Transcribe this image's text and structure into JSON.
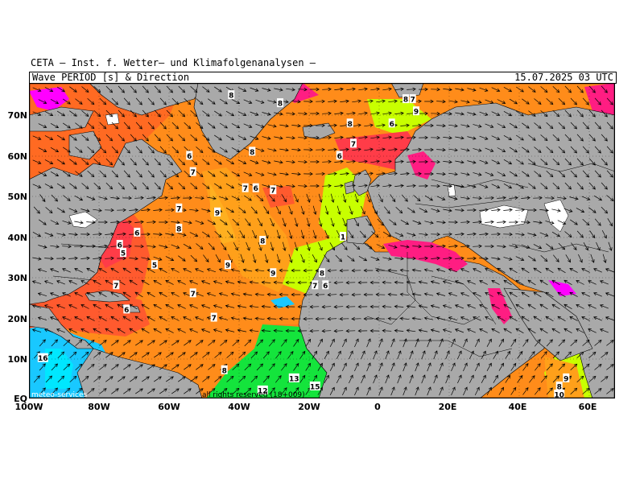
{
  "header": {
    "title": "CETA – Inst. f. Wetter– und Klimafolgenanalysen –",
    "subtitle": "Wave PERIOD [s] & Direction",
    "datetime": "15.07.2025 03 UTC"
  },
  "axes": {
    "lat_labels": [
      "70N",
      "60N",
      "50N",
      "40N",
      "30N",
      "20N",
      "10N",
      "EQ"
    ],
    "lon_labels": [
      "100W",
      "80W",
      "60W",
      "40W",
      "20W",
      "0",
      "20E",
      "40E",
      "60E"
    ]
  },
  "footer": {
    "left_text": "meteo-services",
    "right_text": "all rights reserved (18+009)"
  },
  "colors": {
    "land": "#a9a9a9",
    "ice": "#ffffff",
    "period_3s": "#ff00ff",
    "period_5s": "#ff2a6a",
    "period_6s": "#ff4d3a",
    "period_7s": "#ff7a20",
    "period_8s": "#ff9416",
    "period_9s": "#ffa01a",
    "period_10s": "#c8ff00",
    "period_12s": "#14e43c",
    "period_14s": "#00e7ff",
    "period_16s": "#19c8ff",
    "arrow": "#000000"
  },
  "period_labels": [
    {
      "v": "8",
      "lon": -28,
      "lat": 73
    },
    {
      "v": "8",
      "lon": -36,
      "lat": 61
    },
    {
      "v": "7",
      "lon": -38,
      "lat": 52
    },
    {
      "v": "6",
      "lon": -35,
      "lat": 52
    },
    {
      "v": "7",
      "lon": -30,
      "lat": 51.5
    },
    {
      "v": "6",
      "lon": -11,
      "lat": 60
    },
    {
      "v": "8",
      "lon": -42,
      "lat": 75
    },
    {
      "v": "8",
      "lon": -8,
      "lat": 68
    },
    {
      "v": "6",
      "lon": 4,
      "lat": 68
    },
    {
      "v": "8",
      "lon": 8,
      "lat": 74
    },
    {
      "v": "7",
      "lon": 10,
      "lat": 74
    },
    {
      "v": "9",
      "lon": 11,
      "lat": 71
    },
    {
      "v": "7",
      "lon": -7,
      "lat": 63
    },
    {
      "v": "6",
      "lon": -54,
      "lat": 60
    },
    {
      "v": "7",
      "lon": -53,
      "lat": 56
    },
    {
      "v": "7",
      "lon": -57,
      "lat": 47
    },
    {
      "v": "8",
      "lon": -57,
      "lat": 42
    },
    {
      "v": "9",
      "lon": -46,
      "lat": 46
    },
    {
      "v": "8",
      "lon": -33,
      "lat": 39
    },
    {
      "v": "9",
      "lon": -43,
      "lat": 33
    },
    {
      "v": "6",
      "lon": -69,
      "lat": 41
    },
    {
      "v": "6",
      "lon": -74,
      "lat": 38
    },
    {
      "v": "5",
      "lon": -73,
      "lat": 36
    },
    {
      "v": "5",
      "lon": -64,
      "lat": 33
    },
    {
      "v": "7",
      "lon": -75,
      "lat": 28
    },
    {
      "v": "6",
      "lon": -72,
      "lat": 22
    },
    {
      "v": "7",
      "lon": -53,
      "lat": 26
    },
    {
      "v": "7",
      "lon": -47,
      "lat": 20
    },
    {
      "v": "9",
      "lon": -30,
      "lat": 31
    },
    {
      "v": "7",
      "lon": -18,
      "lat": 28
    },
    {
      "v": "6",
      "lon": -15,
      "lat": 28
    },
    {
      "v": "8",
      "lon": -16,
      "lat": 31
    },
    {
      "v": "1",
      "lon": -10,
      "lat": 40
    },
    {
      "v": "8",
      "lon": -44,
      "lat": 7
    },
    {
      "v": "13",
      "lon": -24,
      "lat": 5
    },
    {
      "v": "12",
      "lon": -33,
      "lat": 2
    },
    {
      "v": "15",
      "lon": -18,
      "lat": 3
    },
    {
      "v": "16",
      "lon": -96,
      "lat": 10
    },
    {
      "v": "8",
      "lon": 52,
      "lat": 3
    },
    {
      "v": "9",
      "lon": 54,
      "lat": 5
    },
    {
      "v": "10",
      "lon": 52,
      "lat": 1
    }
  ]
}
